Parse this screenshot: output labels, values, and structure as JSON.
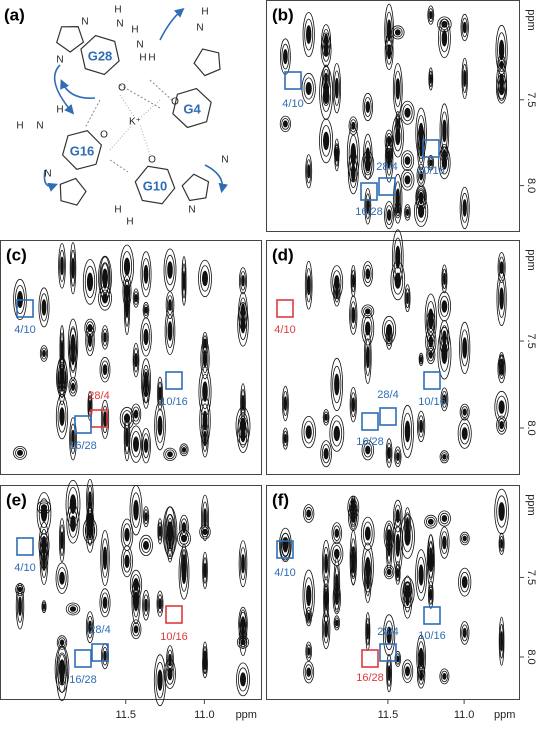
{
  "panels": [
    {
      "label": "(a)",
      "residues": [
        "G28",
        "G4",
        "G16",
        "G10"
      ],
      "ion": "K⁺",
      "atoms": [
        "H",
        "N",
        "H",
        "N",
        "H",
        "H",
        "N",
        "N",
        "O",
        "O",
        "O",
        "O",
        "N",
        "H",
        "H",
        "N",
        "H",
        "N",
        "H",
        "H",
        "N",
        "N"
      ]
    },
    {
      "label": "(b)",
      "boxes": [
        {
          "label": "4/10",
          "color": "#2f6db5"
        },
        {
          "label": "10/16",
          "color": "#2f6db5"
        },
        {
          "label": "28/4",
          "color": "#2f6db5"
        },
        {
          "label": "16/28",
          "color": "#2f6db5"
        }
      ],
      "y_axis": [
        "ppm",
        "7.5",
        "8.0"
      ]
    },
    {
      "label": "(c)",
      "boxes": [
        {
          "label": "4/10",
          "color": "#2f6db5"
        },
        {
          "label": "10/16",
          "color": "#2f6db5"
        },
        {
          "label": "28/4",
          "color": "#e03a3a"
        },
        {
          "label": "16/28",
          "color": "#2f6db5"
        }
      ]
    },
    {
      "label": "(d)",
      "boxes": [
        {
          "label": "4/10",
          "color": "#e03a3a"
        },
        {
          "label": "10/16",
          "color": "#2f6db5"
        },
        {
          "label": "28/4",
          "color": "#2f6db5"
        },
        {
          "label": "16/28",
          "color": "#2f6db5"
        }
      ],
      "y_axis": [
        "ppm",
        "7.5",
        "8.0"
      ]
    },
    {
      "label": "(e)",
      "boxes": [
        {
          "label": "4/10",
          "color": "#2f6db5"
        },
        {
          "label": "10/16",
          "color": "#e03a3a"
        },
        {
          "label": "28/4",
          "color": "#2f6db5"
        },
        {
          "label": "16/28",
          "color": "#2f6db5"
        }
      ],
      "x_axis": [
        "11.5",
        "11.0",
        "ppm"
      ]
    },
    {
      "label": "(f)",
      "boxes": [
        {
          "label": "4/10",
          "color": "#2f6db5"
        },
        {
          "label": "10/16",
          "color": "#2f6db5"
        },
        {
          "label": "28/4",
          "color": "#2f6db5"
        },
        {
          "label": "16/28",
          "color": "#e03a3a"
        }
      ],
      "y_axis": [
        "ppm",
        "7.5",
        "8.0"
      ],
      "x_axis": [
        "11.5",
        "11.0",
        "ppm"
      ]
    }
  ]
}
